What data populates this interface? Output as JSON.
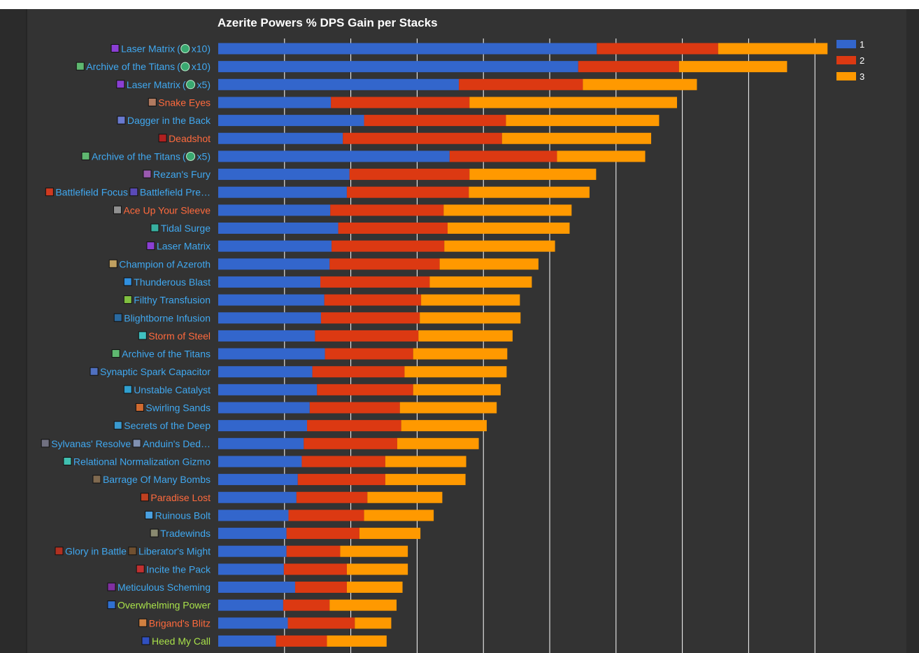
{
  "chart_data": {
    "type": "bar",
    "orientation": "horizontal",
    "stacked": true,
    "title": "Azerite Powers % DPS Gain per Stacks",
    "xlabel": "",
    "ylabel": "",
    "xlim": [
      0,
      10.3
    ],
    "grid": true,
    "legend": "top-right",
    "series_colors": [
      "#3366cc",
      "#dc3912",
      "#ff9900"
    ],
    "series": [
      {
        "name": "1",
        "values": [
          5.71,
          5.43,
          3.63,
          1.7,
          2.2,
          1.88,
          3.49,
          1.98,
          1.94,
          1.69,
          1.81,
          1.71,
          1.68,
          1.54,
          1.6,
          1.55,
          1.46,
          1.61,
          1.42,
          1.49,
          1.38,
          1.34,
          1.29,
          1.26,
          1.2,
          1.18,
          1.06,
          1.03,
          1.03,
          0.99,
          1.16,
          0.98,
          1.05,
          0.87
        ]
      },
      {
        "name": "2",
        "values": [
          1.83,
          1.52,
          1.87,
          2.09,
          2.14,
          2.4,
          1.62,
          1.81,
          1.84,
          1.71,
          1.65,
          1.7,
          1.66,
          1.65,
          1.46,
          1.49,
          1.56,
          1.33,
          1.39,
          1.45,
          1.36,
          1.42,
          1.41,
          1.26,
          1.32,
          1.07,
          1.14,
          1.1,
          0.81,
          0.95,
          0.78,
          0.7,
          1.01,
          0.77
        ]
      },
      {
        "name": "3",
        "values": [
          1.65,
          1.63,
          1.72,
          3.13,
          2.31,
          2.25,
          1.33,
          1.91,
          1.82,
          1.93,
          1.84,
          1.67,
          1.49,
          1.54,
          1.49,
          1.52,
          1.42,
          1.42,
          1.54,
          1.32,
          1.46,
          1.29,
          1.23,
          1.22,
          1.21,
          1.13,
          1.05,
          0.92,
          1.02,
          0.92,
          0.84,
          1.01,
          0.55,
          0.9
        ]
      }
    ],
    "categories": [
      {
        "text": "Laser Matrix",
        "suffix": "x10)",
        "extra": "",
        "color": "#40a8f0",
        "icon": "purple-lightning-icon",
        "icon_color": "#8b3fd4",
        "trait_icon": "trait-icon"
      },
      {
        "text": "Archive of the Titans",
        "suffix": "x10)",
        "extra": "",
        "color": "#40a8f0",
        "icon": "titan-disc-icon",
        "icon_color": "#5fb870",
        "trait_icon": "trait-icon"
      },
      {
        "text": "Laser Matrix",
        "suffix": "x5)",
        "extra": "",
        "color": "#40a8f0",
        "icon": "purple-lightning-icon",
        "icon_color": "#8b3fd4",
        "trait_icon": "trait-icon"
      },
      {
        "text": "Snake Eyes",
        "suffix": "",
        "extra": "",
        "color": "#ff6a3d",
        "icon": "dice-icon",
        "icon_color": "#b07a60"
      },
      {
        "text": "Dagger in the Back",
        "suffix": "",
        "extra": "",
        "color": "#40a8f0",
        "icon": "dagger-icon",
        "icon_color": "#6a7ad0"
      },
      {
        "text": "Deadshot",
        "suffix": "",
        "extra": "",
        "color": "#ff6a3d",
        "icon": "crosshair-icon",
        "icon_color": "#b02020"
      },
      {
        "text": "Archive of the Titans",
        "suffix": "x5)",
        "extra": "",
        "color": "#40a8f0",
        "icon": "titan-disc-icon",
        "icon_color": "#5fb870",
        "trait_icon": "trait-icon"
      },
      {
        "text": "Rezan's Fury",
        "suffix": "",
        "extra": "",
        "color": "#40a8f0",
        "icon": "raptor-icon",
        "icon_color": "#9a5ab0"
      },
      {
        "text": "Battlefield Focus",
        "suffix": "",
        "extra": "Battlefield Pre…",
        "color": "#40a8f0",
        "icon": "banner-red-icon",
        "icon_color": "#d03a20",
        "icon2": "banner-blue-icon",
        "icon2_color": "#5a4ab8"
      },
      {
        "text": "Ace Up Your Sleeve",
        "suffix": "",
        "extra": "",
        "color": "#ff6a3d",
        "icon": "card-icon",
        "icon_color": "#909090"
      },
      {
        "text": "Tidal Surge",
        "suffix": "",
        "extra": "",
        "color": "#40a8f0",
        "icon": "wave-icon",
        "icon_color": "#38b0a0"
      },
      {
        "text": "Laser Matrix",
        "suffix": "",
        "extra": "",
        "color": "#40a8f0",
        "icon": "purple-lightning-icon",
        "icon_color": "#8b3fd4"
      },
      {
        "text": "Champion of Azeroth",
        "suffix": "",
        "extra": "",
        "color": "#40a8f0",
        "icon": "champion-icon",
        "icon_color": "#c0a060"
      },
      {
        "text": "Thunderous Blast",
        "suffix": "",
        "extra": "",
        "color": "#40a8f0",
        "icon": "storm-icon",
        "icon_color": "#3090e0"
      },
      {
        "text": "Filthy Transfusion",
        "suffix": "",
        "extra": "",
        "color": "#40a8f0",
        "icon": "blood-icon",
        "icon_color": "#80c040"
      },
      {
        "text": "Blightborne Infusion",
        "suffix": "",
        "extra": "",
        "color": "#40a8f0",
        "icon": "eye-icon",
        "icon_color": "#2a6aa0"
      },
      {
        "text": "Storm of Steel",
        "suffix": "",
        "extra": "",
        "color": "#ff6a3d",
        "icon": "blades-icon",
        "icon_color": "#40c0c0"
      },
      {
        "text": "Archive of the Titans",
        "suffix": "",
        "extra": "",
        "color": "#40a8f0",
        "icon": "titan-disc-icon",
        "icon_color": "#5fb870"
      },
      {
        "text": "Synaptic Spark Capacitor",
        "suffix": "",
        "extra": "",
        "color": "#40a8f0",
        "icon": "spark-icon",
        "icon_color": "#5070c0"
      },
      {
        "text": "Unstable Catalyst",
        "suffix": "",
        "extra": "",
        "color": "#40a8f0",
        "icon": "catalyst-icon",
        "icon_color": "#30a0d0"
      },
      {
        "text": "Swirling Sands",
        "suffix": "",
        "extra": "",
        "color": "#40a8f0",
        "icon": "sand-icon",
        "icon_color": "#d06a30"
      },
      {
        "text": "Secrets of the Deep",
        "suffix": "",
        "extra": "",
        "color": "#40a8f0",
        "icon": "deep-icon",
        "icon_color": "#3a9ad0"
      },
      {
        "text": "Sylvanas' Resolve",
        "suffix": "",
        "extra": "Anduin's Ded…",
        "color": "#40a8f0",
        "icon": "banshee-icon",
        "icon_color": "#707080",
        "icon2": "shield-icon",
        "icon2_color": "#8090b0"
      },
      {
        "text": "Relational Normalization Gizmo",
        "suffix": "",
        "extra": "",
        "color": "#40a8f0",
        "icon": "gizmo-icon",
        "icon_color": "#40c0b0"
      },
      {
        "text": "Barrage Of Many Bombs",
        "suffix": "",
        "extra": "",
        "color": "#40a8f0",
        "icon": "bomb-icon",
        "icon_color": "#806a50"
      },
      {
        "text": "Paradise Lost",
        "suffix": "",
        "extra": "",
        "color": "#ff6a3d",
        "icon": "paradise-icon",
        "icon_color": "#c04020"
      },
      {
        "text": "Ruinous Bolt",
        "suffix": "",
        "extra": "",
        "color": "#40a8f0",
        "icon": "bolt-icon",
        "icon_color": "#4aa0e0"
      },
      {
        "text": "Tradewinds",
        "suffix": "",
        "extra": "",
        "color": "#40a8f0",
        "icon": "wind-icon",
        "icon_color": "#8a8a70"
      },
      {
        "text": "Glory in Battle",
        "suffix": "",
        "extra": "Liberator's Might",
        "color": "#40a8f0",
        "icon": "glory-icon",
        "icon_color": "#b03020",
        "icon2": "might-icon",
        "icon2_color": "#705030"
      },
      {
        "text": "Incite the Pack",
        "suffix": "",
        "extra": "",
        "color": "#40a8f0",
        "icon": "wolf-icon",
        "icon_color": "#c03030"
      },
      {
        "text": "Meticulous Scheming",
        "suffix": "",
        "extra": "",
        "color": "#40a8f0",
        "icon": "scheming-icon",
        "icon_color": "#8030a0"
      },
      {
        "text": "Overwhelming Power",
        "suffix": "",
        "extra": "",
        "color": "#a8e04a",
        "icon": "power-icon",
        "icon_color": "#3070d0"
      },
      {
        "text": "Brigand's Blitz",
        "suffix": "",
        "extra": "",
        "color": "#ff6a3d",
        "icon": "blitz-icon",
        "icon_color": "#d08040"
      },
      {
        "text": "Heed My Call",
        "suffix": "",
        "extra": "",
        "color": "#a8e04a",
        "icon": "call-icon",
        "icon_color": "#3050c0"
      }
    ]
  }
}
